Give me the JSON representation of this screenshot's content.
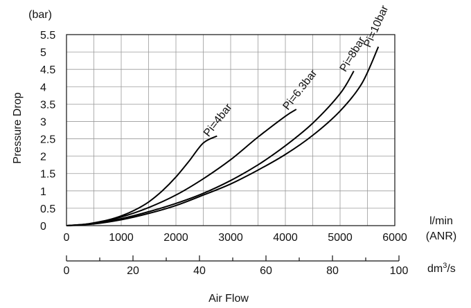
{
  "chart_data": {
    "type": "line",
    "y_unit": "(bar)",
    "ylabel": "Pressure Drop",
    "xlabel": "Air Flow",
    "x_unit_primary": [
      "l/min",
      "(ANR)"
    ],
    "x_unit_secondary": "dm³/s",
    "y_ticks": [
      "0",
      "0.5",
      "1",
      "1.5",
      "2",
      "2.5",
      "3",
      "3.5",
      "4",
      "4.5",
      "5",
      "5.5"
    ],
    "x_ticks_primary": [
      "0",
      "1000",
      "2000",
      "3000",
      "4000",
      "5000",
      "6000"
    ],
    "x_ticks_secondary": [
      "0",
      "20",
      "40",
      "60",
      "80",
      "100"
    ],
    "xlim": [
      0,
      6000
    ],
    "ylim": [
      0,
      5.5
    ],
    "secondary_xlim": [
      0,
      100
    ],
    "grid": true,
    "series": [
      {
        "name": "Pi=4bar",
        "x": [
          0,
          250,
          500,
          750,
          1000,
          1250,
          1500,
          1750,
          2000,
          2250,
          2500,
          2750
        ],
        "y": [
          0,
          0.02,
          0.08,
          0.16,
          0.28,
          0.45,
          0.68,
          1.0,
          1.4,
          1.88,
          2.38,
          2.58
        ]
      },
      {
        "name": "Pi=6.3bar",
        "x": [
          0,
          500,
          1000,
          1500,
          2000,
          2500,
          3000,
          3500,
          4000,
          4200
        ],
        "y": [
          0,
          0.07,
          0.25,
          0.52,
          0.88,
          1.35,
          1.9,
          2.55,
          3.15,
          3.35
        ]
      },
      {
        "name": "Pi=8bar",
        "x": [
          0,
          500,
          1000,
          1500,
          2000,
          2500,
          3000,
          3500,
          4000,
          4500,
          5000,
          5250
        ],
        "y": [
          0,
          0.06,
          0.2,
          0.4,
          0.64,
          0.93,
          1.3,
          1.75,
          2.3,
          2.95,
          3.8,
          4.45
        ]
      },
      {
        "name": "Pi=10bar",
        "x": [
          0,
          500,
          1000,
          1500,
          2000,
          2500,
          3000,
          3500,
          4000,
          4500,
          5000,
          5400,
          5700
        ],
        "y": [
          0,
          0.05,
          0.17,
          0.35,
          0.58,
          0.88,
          1.2,
          1.6,
          2.05,
          2.6,
          3.3,
          4.1,
          5.15
        ]
      }
    ]
  }
}
